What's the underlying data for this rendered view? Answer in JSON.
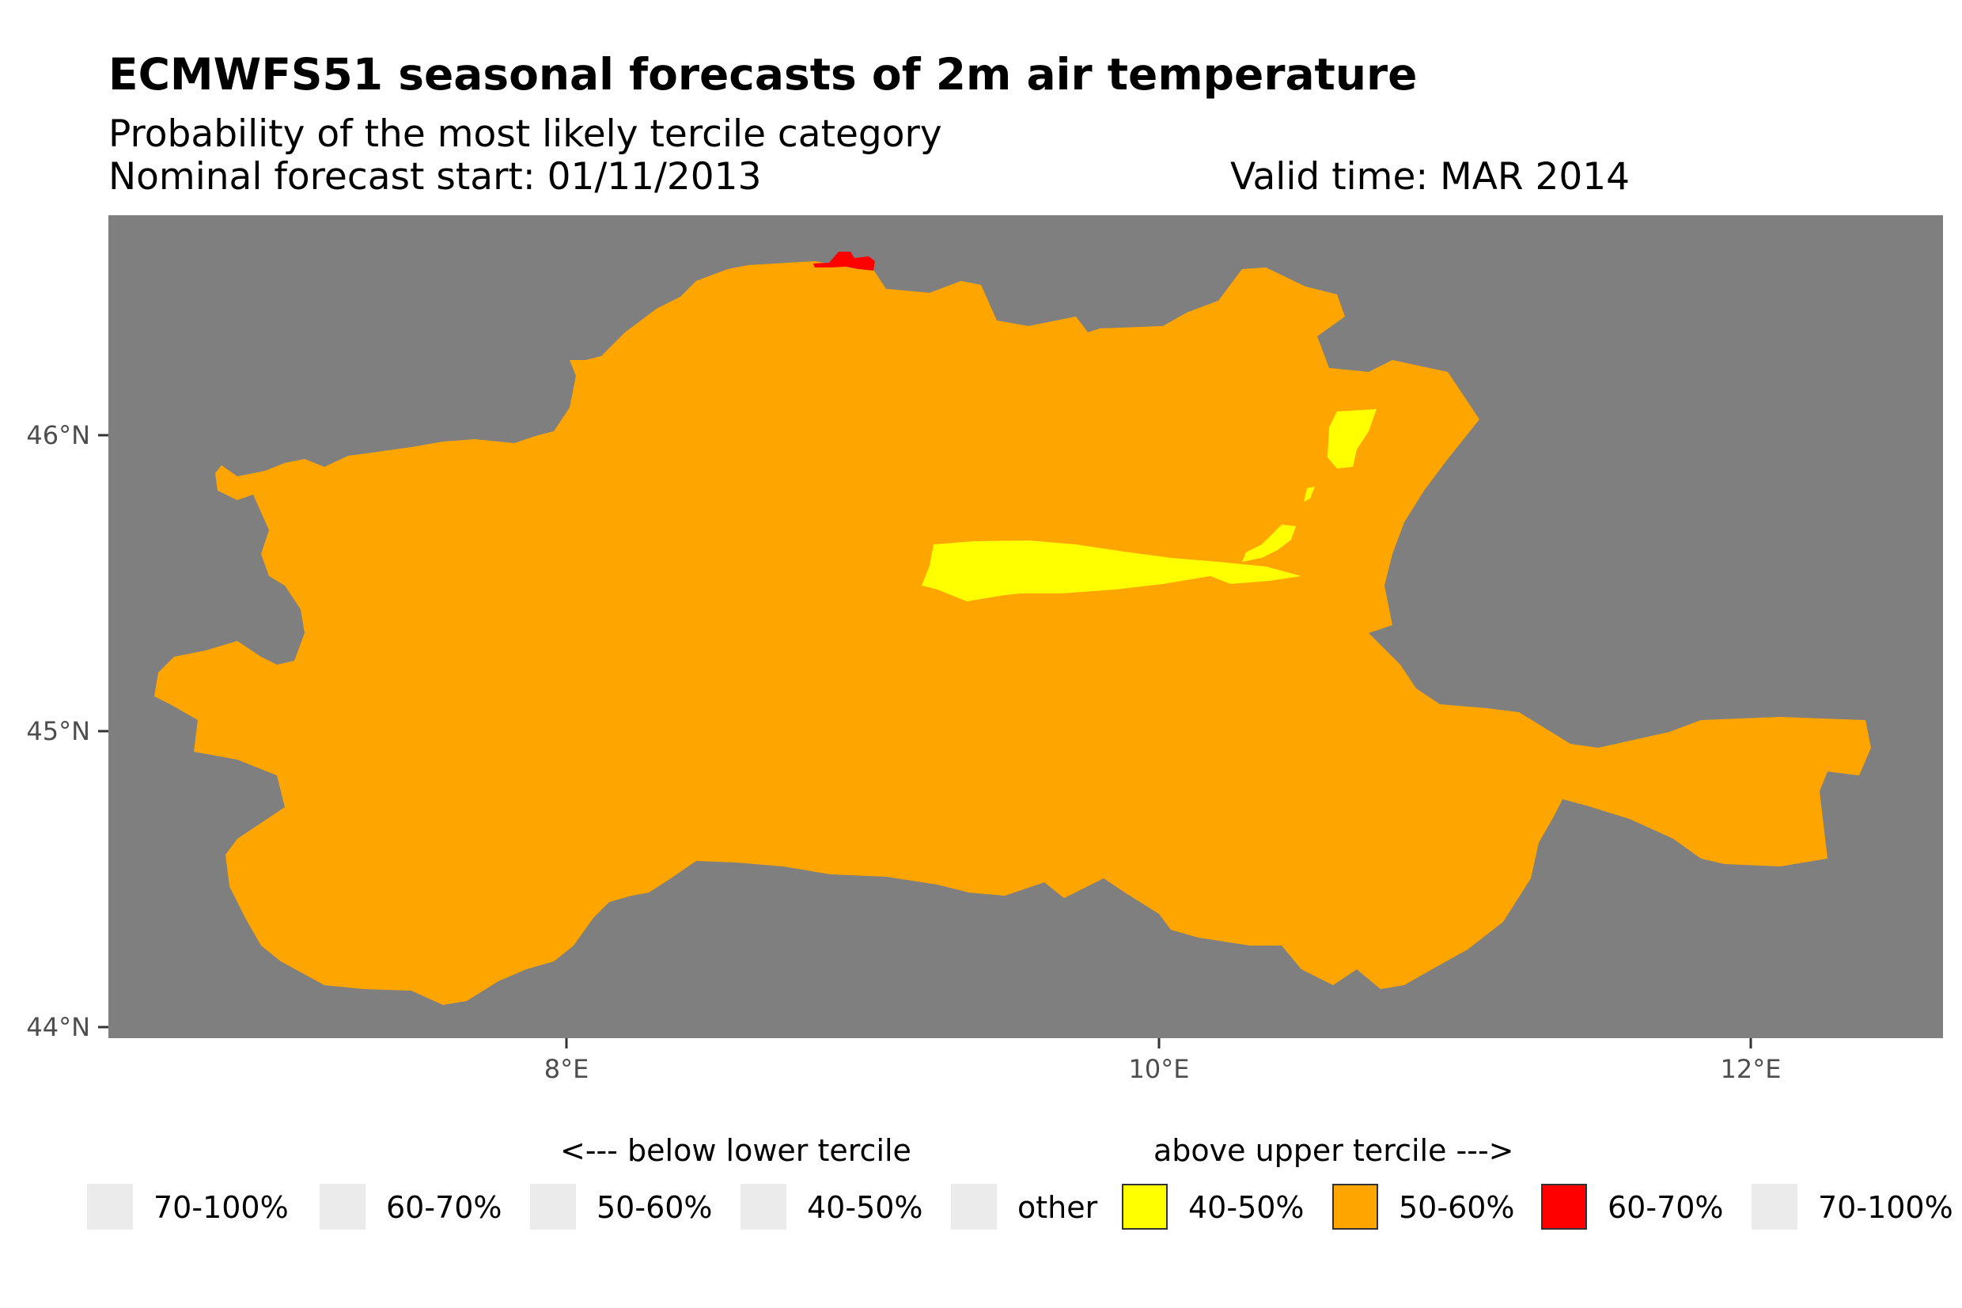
{
  "title": "ECMWFS51 seasonal forecasts of 2m air temperature",
  "subtitle": "Probability of the most likely tercile category",
  "forecast_start": "Nominal forecast start: 01/11/2013",
  "valid_time": "Valid time: MAR 2014",
  "colors": {
    "background_nodata": "#7f7f7f",
    "above_40_50": "#ffff00",
    "above_50_60": "#ffa500",
    "above_60_70": "#ff0000",
    "empty_key": "#ebebeb"
  },
  "axes": {
    "y_ticks": [
      "46°N",
      "45°N",
      "44°N"
    ],
    "x_ticks": [
      "8°E",
      "10°E",
      "12°E"
    ]
  },
  "legend": {
    "below_heading": "<--- below lower tercile",
    "above_heading": "above upper tercile --->",
    "items": [
      {
        "label": "70-100%",
        "color": "#ebebeb"
      },
      {
        "label": "60-70%",
        "color": "#ebebeb"
      },
      {
        "label": "50-60%",
        "color": "#ebebeb"
      },
      {
        "label": "40-50%",
        "color": "#ebebeb"
      },
      {
        "label": "other",
        "color": "#ebebeb"
      },
      {
        "label": "40-50%",
        "color": "#ffff00"
      },
      {
        "label": "50-60%",
        "color": "#ffa500"
      },
      {
        "label": "60-70%",
        "color": "#ff0000"
      },
      {
        "label": "70-100%",
        "color": "#ebebeb"
      }
    ]
  }
}
